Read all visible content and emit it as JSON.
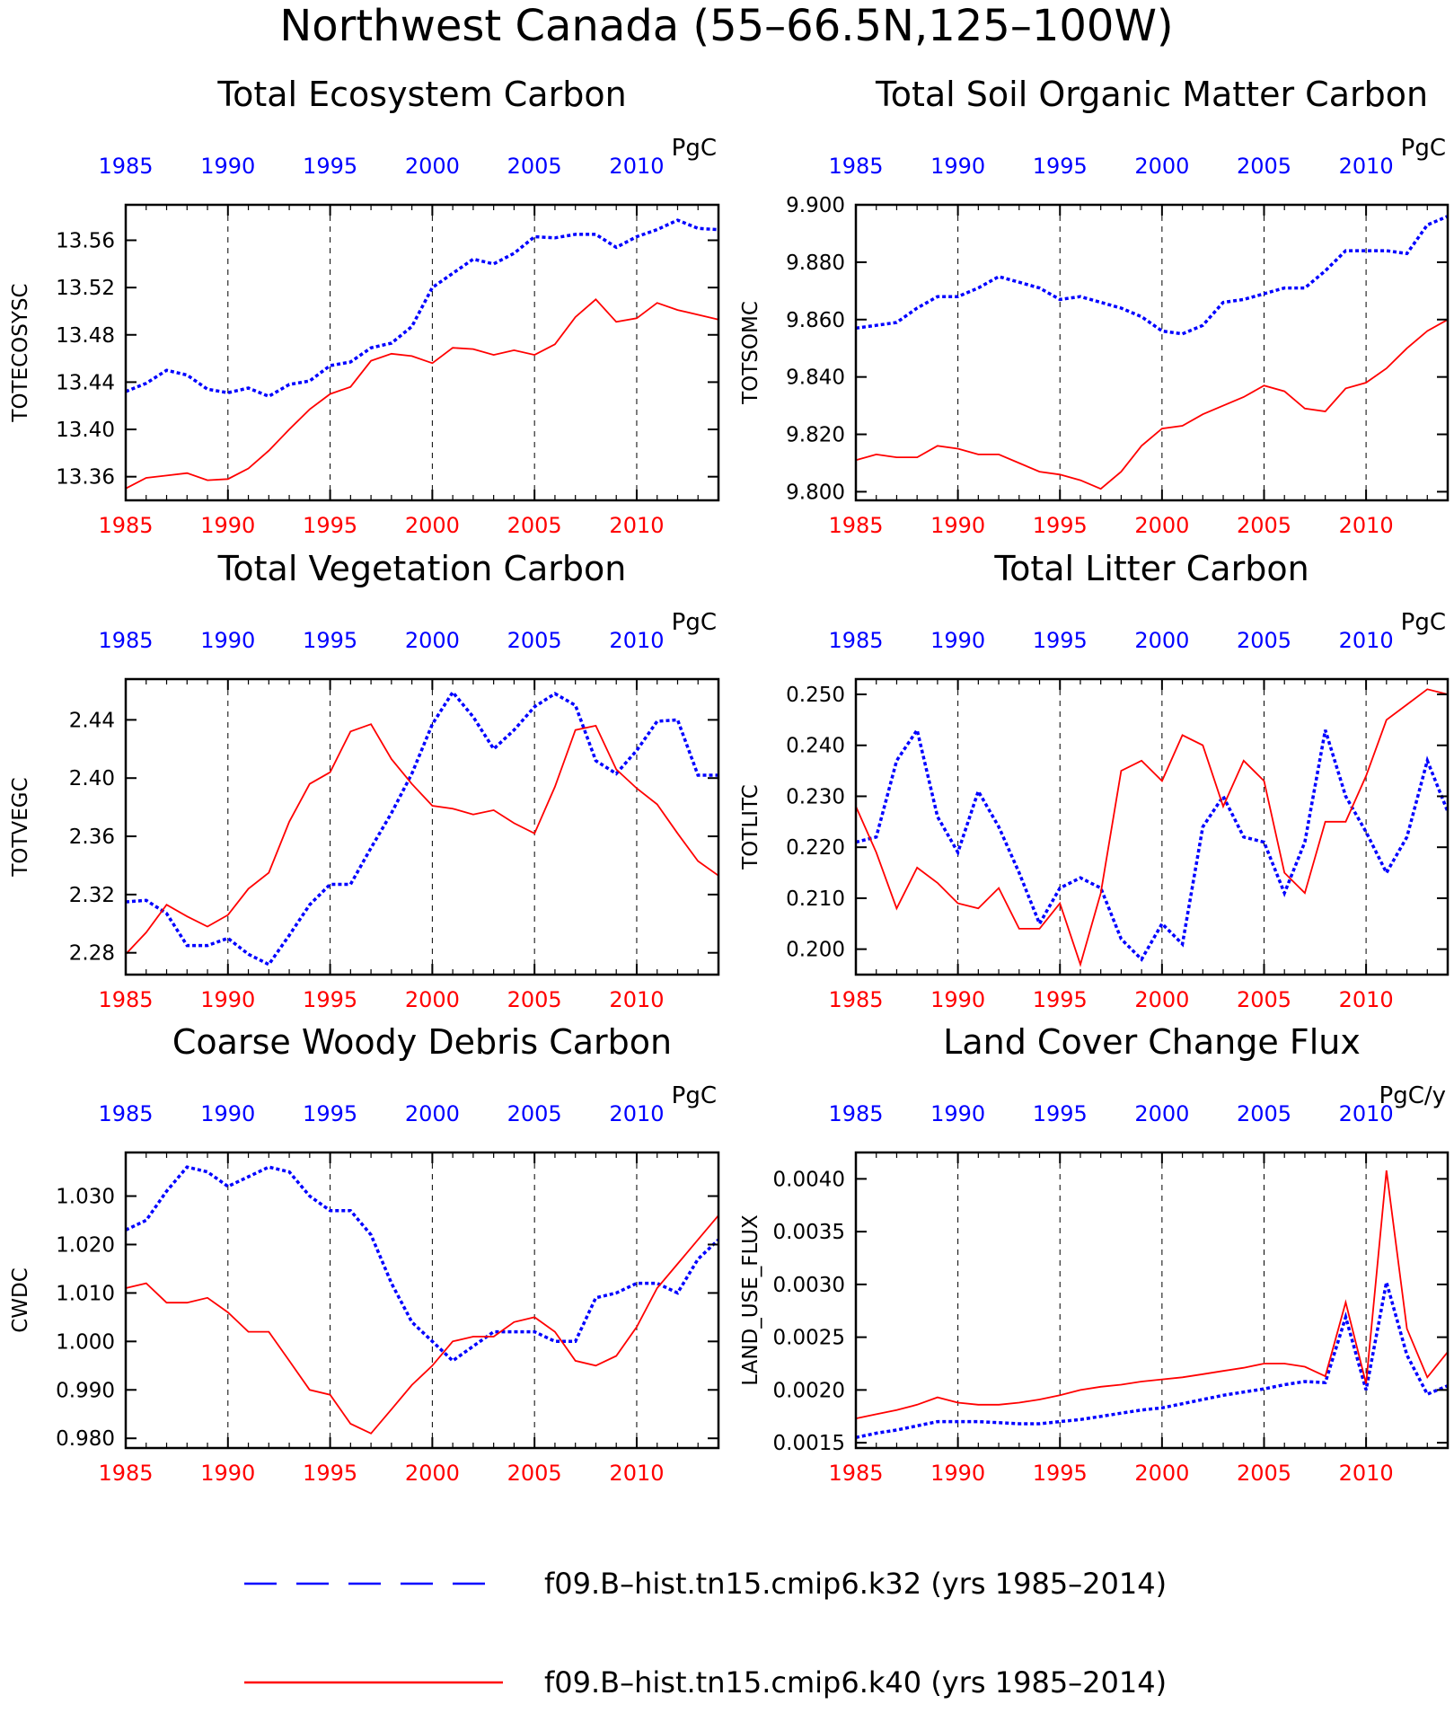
{
  "figure_title": "Northwest Canada (55–66.5N,125–100W)",
  "colors": {
    "k32": "#0000ff",
    "k40": "#ff0000",
    "axis": "#000000",
    "grid": "#000000"
  },
  "legend": {
    "items": [
      {
        "label": "f09.B–hist.tn15.cmip6.k32 (yrs 1985–2014)",
        "color": "#0000ff",
        "style": "dashed"
      },
      {
        "label": "f09.B–hist.tn15.cmip6.k40 (yrs 1985–2014)",
        "color": "#ff0000",
        "style": "solid"
      }
    ]
  },
  "chart_data": [
    {
      "type": "line",
      "title": "Total Ecosystem Carbon",
      "ylabel": "TOTECOSYSC",
      "units": "PgC",
      "xlim": [
        1985,
        2014
      ],
      "ylim": [
        13.34,
        13.59
      ],
      "yticks": [
        "13.36",
        "13.40",
        "13.44",
        "13.48",
        "13.52",
        "13.56"
      ],
      "xticks": [
        "1985",
        "1990",
        "1995",
        "2000",
        "2005",
        "2010"
      ],
      "grid": "vertical dashed at 1990, 1995, 2000, 2005, 2010",
      "x": [
        1985,
        1986,
        1987,
        1988,
        1989,
        1990,
        1991,
        1992,
        1993,
        1994,
        1995,
        1996,
        1997,
        1998,
        1999,
        2000,
        2001,
        2002,
        2003,
        2004,
        2005,
        2006,
        2007,
        2008,
        2009,
        2010,
        2011,
        2012,
        2013,
        2014
      ],
      "series": [
        {
          "name": "f09.B–hist.tn15.cmip6.k32",
          "values": [
            13.432,
            13.439,
            13.45,
            13.446,
            13.434,
            13.431,
            13.435,
            13.428,
            13.438,
            13.441,
            13.454,
            13.457,
            13.469,
            13.473,
            13.487,
            13.52,
            13.532,
            13.544,
            13.54,
            13.549,
            13.563,
            13.562,
            13.565,
            13.565,
            13.554,
            13.563,
            13.569,
            13.577,
            13.57,
            13.569
          ]
        },
        {
          "name": "f09.B–hist.tn15.cmip6.k40",
          "values": [
            13.35,
            13.359,
            13.361,
            13.363,
            13.357,
            13.358,
            13.367,
            13.382,
            13.4,
            13.417,
            13.43,
            13.436,
            13.458,
            13.464,
            13.462,
            13.456,
            13.469,
            13.468,
            13.463,
            13.467,
            13.463,
            13.472,
            13.495,
            13.51,
            13.491,
            13.494,
            13.507,
            13.501,
            13.497,
            13.493
          ]
        }
      ]
    },
    {
      "type": "line",
      "title": "Total Soil Organic Matter Carbon",
      "ylabel": "TOTSOMC",
      "units": "PgC",
      "xlim": [
        1985,
        2014
      ],
      "ylim": [
        9.797,
        9.9
      ],
      "yticks": [
        "9.800",
        "9.820",
        "9.840",
        "9.860",
        "9.880",
        "9.900"
      ],
      "xticks": [
        "1985",
        "1990",
        "1995",
        "2000",
        "2005",
        "2010"
      ],
      "grid": "vertical dashed at 1990, 1995, 2000, 2005, 2010",
      "x": [
        1985,
        1986,
        1987,
        1988,
        1989,
        1990,
        1991,
        1992,
        1993,
        1994,
        1995,
        1996,
        1997,
        1998,
        1999,
        2000,
        2001,
        2002,
        2003,
        2004,
        2005,
        2006,
        2007,
        2008,
        2009,
        2010,
        2011,
        2012,
        2013,
        2014
      ],
      "series": [
        {
          "name": "f09.B–hist.tn15.cmip6.k32",
          "values": [
            9.857,
            9.858,
            9.859,
            9.864,
            9.868,
            9.868,
            9.871,
            9.875,
            9.873,
            9.871,
            9.867,
            9.868,
            9.866,
            9.864,
            9.861,
            9.856,
            9.855,
            9.858,
            9.866,
            9.867,
            9.869,
            9.871,
            9.871,
            9.877,
            9.884,
            9.884,
            9.884,
            9.883,
            9.893,
            9.896
          ]
        },
        {
          "name": "f09.B–hist.tn15.cmip6.k40",
          "values": [
            9.811,
            9.813,
            9.812,
            9.812,
            9.816,
            9.815,
            9.813,
            9.813,
            9.81,
            9.807,
            9.806,
            9.804,
            9.801,
            9.807,
            9.816,
            9.822,
            9.823,
            9.827,
            9.83,
            9.833,
            9.837,
            9.835,
            9.829,
            9.828,
            9.836,
            9.838,
            9.843,
            9.85,
            9.856,
            9.86
          ]
        }
      ]
    },
    {
      "type": "line",
      "title": "Total Vegetation Carbon",
      "ylabel": "TOTVEGC",
      "units": "PgC",
      "xlim": [
        1985,
        2014
      ],
      "ylim": [
        2.265,
        2.468
      ],
      "yticks": [
        "2.28",
        "2.32",
        "2.36",
        "2.40",
        "2.44"
      ],
      "xticks": [
        "1985",
        "1990",
        "1995",
        "2000",
        "2005",
        "2010"
      ],
      "grid": "vertical dashed at 1990, 1995, 2000, 2005, 2010",
      "x": [
        1985,
        1986,
        1987,
        1988,
        1989,
        1990,
        1991,
        1992,
        1993,
        1994,
        1995,
        1996,
        1997,
        1998,
        1999,
        2000,
        2001,
        2002,
        2003,
        2004,
        2005,
        2006,
        2007,
        2008,
        2009,
        2010,
        2011,
        2012,
        2013,
        2014
      ],
      "series": [
        {
          "name": "f09.B–hist.tn15.cmip6.k32",
          "values": [
            2.315,
            2.316,
            2.307,
            2.285,
            2.285,
            2.29,
            2.279,
            2.272,
            2.292,
            2.313,
            2.327,
            2.327,
            2.352,
            2.376,
            2.403,
            2.437,
            2.459,
            2.442,
            2.42,
            2.433,
            2.449,
            2.458,
            2.45,
            2.412,
            2.403,
            2.419,
            2.439,
            2.44,
            2.402,
            2.402
          ]
        },
        {
          "name": "f09.B–hist.tn15.cmip6.k40",
          "values": [
            2.279,
            2.294,
            2.313,
            2.305,
            2.298,
            2.306,
            2.324,
            2.335,
            2.37,
            2.396,
            2.404,
            2.432,
            2.437,
            2.413,
            2.396,
            2.381,
            2.379,
            2.375,
            2.378,
            2.369,
            2.362,
            2.394,
            2.433,
            2.436,
            2.406,
            2.393,
            2.382,
            2.362,
            2.343,
            2.333
          ]
        }
      ]
    },
    {
      "type": "line",
      "title": "Total Litter Carbon",
      "ylabel": "TOTLITC",
      "units": "PgC",
      "xlim": [
        1985,
        2014
      ],
      "ylim": [
        0.195,
        0.253
      ],
      "yticks": [
        "0.200",
        "0.210",
        "0.220",
        "0.230",
        "0.240",
        "0.250"
      ],
      "xticks": [
        "1985",
        "1990",
        "1995",
        "2000",
        "2005",
        "2010"
      ],
      "grid": "vertical dashed at 1990, 1995, 2000, 2005, 2010",
      "x": [
        1985,
        1986,
        1987,
        1988,
        1989,
        1990,
        1991,
        1992,
        1993,
        1994,
        1995,
        1996,
        1997,
        1998,
        1999,
        2000,
        2001,
        2002,
        2003,
        2004,
        2005,
        2006,
        2007,
        2008,
        2009,
        2010,
        2011,
        2012,
        2013,
        2014
      ],
      "series": [
        {
          "name": "f09.B–hist.tn15.cmip6.k32",
          "values": [
            0.221,
            0.222,
            0.237,
            0.243,
            0.226,
            0.219,
            0.231,
            0.224,
            0.215,
            0.205,
            0.212,
            0.214,
            0.212,
            0.202,
            0.198,
            0.205,
            0.201,
            0.224,
            0.23,
            0.222,
            0.221,
            0.211,
            0.221,
            0.243,
            0.23,
            0.223,
            0.215,
            0.222,
            0.237,
            0.227
          ]
        },
        {
          "name": "f09.B–hist.tn15.cmip6.k40",
          "values": [
            0.228,
            0.219,
            0.208,
            0.216,
            0.213,
            0.209,
            0.208,
            0.212,
            0.204,
            0.204,
            0.209,
            0.197,
            0.211,
            0.235,
            0.237,
            0.233,
            0.242,
            0.24,
            0.228,
            0.237,
            0.233,
            0.215,
            0.211,
            0.225,
            0.225,
            0.234,
            0.245,
            0.248,
            0.251,
            0.25
          ]
        }
      ]
    },
    {
      "type": "line",
      "title": "Coarse Woody Debris Carbon",
      "ylabel": "CWDC",
      "units": "PgC",
      "xlim": [
        1985,
        2014
      ],
      "ylim": [
        0.978,
        1.039
      ],
      "yticks": [
        "0.980",
        "0.990",
        "1.000",
        "1.010",
        "1.020",
        "1.030"
      ],
      "xticks": [
        "1985",
        "1990",
        "1995",
        "2000",
        "2005",
        "2010"
      ],
      "grid": "vertical dashed at 1990, 1995, 2000, 2005, 2010",
      "x": [
        1985,
        1986,
        1987,
        1988,
        1989,
        1990,
        1991,
        1992,
        1993,
        1994,
        1995,
        1996,
        1997,
        1998,
        1999,
        2000,
        2001,
        2002,
        2003,
        2004,
        2005,
        2006,
        2007,
        2008,
        2009,
        2010,
        2011,
        2012,
        2013,
        2014
      ],
      "series": [
        {
          "name": "f09.B–hist.tn15.cmip6.k32",
          "values": [
            1.023,
            1.025,
            1.031,
            1.036,
            1.035,
            1.032,
            1.034,
            1.036,
            1.035,
            1.03,
            1.027,
            1.027,
            1.022,
            1.012,
            1.004,
            1.0,
            0.996,
            0.999,
            1.002,
            1.002,
            1.002,
            1.0,
            1.0,
            1.009,
            1.01,
            1.012,
            1.012,
            1.01,
            1.017,
            1.021
          ]
        },
        {
          "name": "f09.B–hist.tn15.cmip6.k40",
          "values": [
            1.011,
            1.012,
            1.008,
            1.008,
            1.009,
            1.006,
            1.002,
            1.002,
            0.996,
            0.99,
            0.989,
            0.983,
            0.981,
            0.986,
            0.991,
            0.995,
            1.0,
            1.001,
            1.001,
            1.004,
            1.005,
            1.002,
            0.996,
            0.995,
            0.997,
            1.003,
            1.011,
            1.016,
            1.021,
            1.026
          ]
        }
      ]
    },
    {
      "type": "line",
      "title": "Land Cover Change Flux",
      "ylabel": "LAND_USE_FLUX",
      "units": "PgC/y",
      "xlim": [
        1985,
        2014
      ],
      "ylim": [
        0.00145,
        0.00425
      ],
      "yticks": [
        "0.0015",
        "0.0020",
        "0.0025",
        "0.0030",
        "0.0035",
        "0.0040"
      ],
      "xticks": [
        "1985",
        "1990",
        "1995",
        "2000",
        "2005",
        "2010"
      ],
      "grid": "vertical dashed at 1990, 1995, 2000, 2005, 2010",
      "x": [
        1985,
        1986,
        1987,
        1988,
        1989,
        1990,
        1991,
        1992,
        1993,
        1994,
        1995,
        1996,
        1997,
        1998,
        1999,
        2000,
        2001,
        2002,
        2003,
        2004,
        2005,
        2006,
        2007,
        2008,
        2009,
        2010,
        2011,
        2012,
        2013,
        2014
      ],
      "series": [
        {
          "name": "f09.B–hist.tn15.cmip6.k32",
          "values": [
            0.00155,
            0.00159,
            0.00162,
            0.00166,
            0.0017,
            0.0017,
            0.0017,
            0.00169,
            0.00168,
            0.00168,
            0.0017,
            0.00172,
            0.00175,
            0.00178,
            0.00181,
            0.00183,
            0.00187,
            0.00191,
            0.00195,
            0.00198,
            0.00201,
            0.00205,
            0.00208,
            0.00207,
            0.00269,
            0.002,
            0.00302,
            0.00233,
            0.00196,
            0.00204
          ]
        },
        {
          "name": "f09.B–hist.tn15.cmip6.k40",
          "values": [
            0.00173,
            0.00177,
            0.00181,
            0.00186,
            0.00193,
            0.00188,
            0.00186,
            0.00186,
            0.00188,
            0.00191,
            0.00195,
            0.002,
            0.00203,
            0.00205,
            0.00208,
            0.0021,
            0.00212,
            0.00215,
            0.00218,
            0.00221,
            0.00225,
            0.00225,
            0.00222,
            0.00213,
            0.00283,
            0.00206,
            0.00408,
            0.00258,
            0.00212,
            0.00236
          ]
        }
      ]
    }
  ]
}
